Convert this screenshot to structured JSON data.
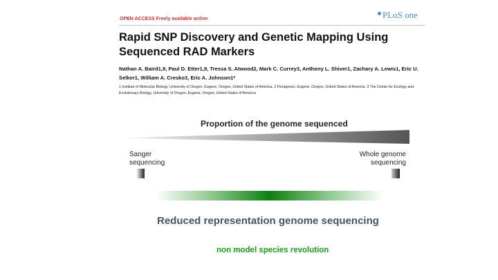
{
  "paper": {
    "open_access": "OPEN ACCESS Freely available online",
    "journal": "PLoS one",
    "title": "Rapid SNP Discovery and Genetic Mapping Using Sequenced RAD Markers",
    "authors": "Nathan A. Baird1,9, Paul D. Etter1,9, Tressa S. Atwood2, Mark C. Currey3, Anthony L. Shiver1, Zachary A. Lewis1, Eric U. Selker1, William A. Cresko3, Eric A. Johnson1*",
    "affiliations": "1 Institute of Molecular Biology, University of Oregon, Eugene, Oregon, United States of America, 2 Floragenex, Eugene, Oregon, United States of America, 3 The Center for Ecology and Evolutionary Biology, University of Oregon, Eugene, Oregon, United States of America"
  },
  "diagram": {
    "proportion_label": "Proportion of the genome sequenced",
    "left_label_line1": "Sanger",
    "left_label_line2": "sequencing",
    "right_label_line1": "Whole genome",
    "right_label_line2": "sequencing"
  },
  "captions": {
    "reduced": "Reduced representation genome sequencing",
    "non_model": "non model species revolution"
  },
  "colors": {
    "wedge_start": "#f2f2f2",
    "wedge_end": "#555555",
    "green": "#0f7f12",
    "caption_blue_gray": "#44546a",
    "caption_green": "#1a9a1a"
  }
}
